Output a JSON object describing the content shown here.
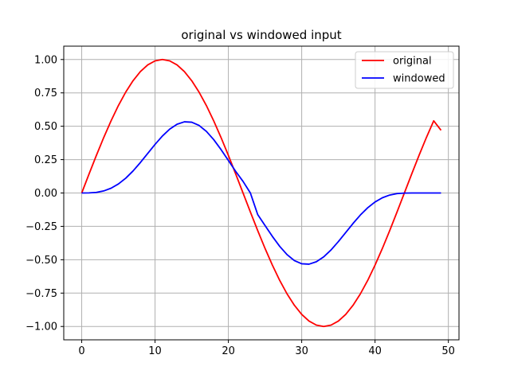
{
  "chart_data": {
    "type": "line",
    "title": "original vs windowed input",
    "xlabel": "",
    "ylabel": "",
    "xlim": [
      -2.45,
      51.45
    ],
    "ylim": [
      -1.1,
      1.1
    ],
    "xticks": [
      0,
      10,
      20,
      30,
      40,
      50
    ],
    "xtick_labels": [
      "0",
      "10",
      "20",
      "30",
      "40",
      "50"
    ],
    "yticks": [
      -1.0,
      -0.75,
      -0.5,
      -0.25,
      0.0,
      0.25,
      0.5,
      0.75,
      1.0
    ],
    "ytick_labels": [
      "−1.00",
      "−0.75",
      "−0.50",
      "−0.25",
      "0.00",
      "0.25",
      "0.50",
      "0.75",
      "1.00"
    ],
    "grid": true,
    "legend_position": "top-right",
    "x": [
      0,
      1,
      2,
      3,
      4,
      5,
      6,
      7,
      8,
      9,
      10,
      11,
      12,
      13,
      14,
      15,
      16,
      17,
      18,
      19,
      20,
      21,
      22,
      23,
      24,
      25,
      26,
      27,
      28,
      29,
      30,
      31,
      32,
      33,
      34,
      35,
      36,
      37,
      38,
      39,
      40,
      41,
      42,
      43,
      44,
      45,
      46,
      47,
      48,
      49
    ],
    "series": [
      {
        "name": "original",
        "color": "#ff0000",
        "values": [
          0.0,
          0.1423,
          0.2817,
          0.4154,
          0.5406,
          0.6549,
          0.7557,
          0.8413,
          0.9096,
          0.9595,
          0.9898,
          1.0,
          0.9898,
          0.9595,
          0.9096,
          0.8413,
          0.7557,
          0.6549,
          0.5406,
          0.4154,
          0.2817,
          0.1423,
          0.0,
          -0.1423,
          -0.2817,
          -0.4154,
          -0.5406,
          -0.6549,
          -0.7557,
          -0.8413,
          -0.9096,
          -0.9595,
          -0.9898,
          -1.0,
          -0.9898,
          -0.9595,
          -0.9096,
          -0.8413,
          -0.7557,
          -0.6549,
          -0.5406,
          -0.4154,
          -0.2817,
          -0.1423,
          0.0,
          0.1423,
          0.2817,
          0.4154,
          0.5406,
          0.47
        ]
      },
      {
        "name": "windowed",
        "color": "#0000ff",
        "values": [
          0.0,
          0.0006,
          0.0046,
          0.0154,
          0.0357,
          0.0673,
          0.1106,
          0.165,
          0.2281,
          0.2962,
          0.3642,
          0.4267,
          0.4786,
          0.5152,
          0.5332,
          0.5303,
          0.5061,
          0.4616,
          0.3998,
          0.3251,
          0.2435,
          0.1618,
          0.0869,
          0.0,
          -0.1618,
          -0.2435,
          -0.3251,
          -0.3998,
          -0.4616,
          -0.5061,
          -0.5303,
          -0.5332,
          -0.5152,
          -0.4786,
          -0.4267,
          -0.3642,
          -0.2962,
          -0.2281,
          -0.165,
          -0.1106,
          -0.0673,
          -0.0357,
          -0.0154,
          -0.0046,
          -0.0006,
          0.0,
          0.0,
          0.0,
          0.0,
          0.0
        ]
      }
    ]
  }
}
